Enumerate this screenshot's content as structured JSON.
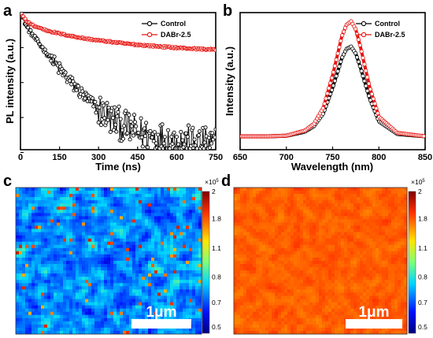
{
  "chart_data": [
    {
      "panel": "a",
      "type": "line",
      "xlabel": "Time (ns)",
      "ylabel": "PL intensity (a.u.)",
      "xlim": [
        0,
        750
      ],
      "x_ticks": [
        "0",
        "150",
        "300",
        "450",
        "600",
        "750"
      ],
      "y_scale": "log",
      "legend_position": "top-right",
      "series": [
        {
          "name": "Control",
          "color": "#000000",
          "x": [
            0,
            25,
            50,
            100,
            150,
            200,
            250,
            300,
            350,
            400,
            450,
            500,
            550,
            600,
            650,
            700,
            750
          ],
          "y": [
            1.0,
            0.38,
            0.21,
            0.07,
            0.024,
            0.009,
            0.0037,
            0.0017,
            0.0009,
            0.00055,
            0.00038,
            0.0003,
            0.00025,
            0.00022,
            0.0002,
            0.00018,
            0.00017
          ]
        },
        {
          "name": "DABr-2.5",
          "color": "#e8130f",
          "x": [
            0,
            25,
            50,
            100,
            150,
            200,
            250,
            300,
            350,
            400,
            450,
            500,
            550,
            600,
            650,
            700,
            750
          ],
          "y": [
            1.0,
            0.55,
            0.42,
            0.31,
            0.25,
            0.21,
            0.18,
            0.16,
            0.145,
            0.13,
            0.12,
            0.112,
            0.105,
            0.099,
            0.094,
            0.09,
            0.087
          ]
        }
      ]
    },
    {
      "panel": "b",
      "type": "line",
      "xlabel": "Wavelength (nm)",
      "ylabel": "Intensity (a.u.)",
      "xlim": [
        650,
        850
      ],
      "x_ticks": [
        "650",
        "700",
        "750",
        "800",
        "850"
      ],
      "legend_position": "top-right",
      "series": [
        {
          "name": "Control",
          "color": "#000000",
          "x": [
            650,
            680,
            700,
            720,
            730,
            740,
            750,
            755,
            760,
            765,
            770,
            775,
            780,
            790,
            800,
            820,
            850
          ],
          "y": [
            0.0,
            0.0,
            0.005,
            0.04,
            0.09,
            0.2,
            0.42,
            0.55,
            0.68,
            0.76,
            0.78,
            0.72,
            0.6,
            0.33,
            0.13,
            0.02,
            0.0
          ]
        },
        {
          "name": "DABr-2.5",
          "color": "#e8130f",
          "x": [
            650,
            680,
            700,
            720,
            730,
            740,
            750,
            755,
            760,
            765,
            770,
            775,
            780,
            790,
            800,
            820,
            850
          ],
          "y": [
            0.0,
            0.0,
            0.006,
            0.05,
            0.11,
            0.25,
            0.53,
            0.7,
            0.87,
            0.97,
            1.0,
            0.93,
            0.78,
            0.43,
            0.17,
            0.03,
            0.0
          ]
        }
      ]
    },
    {
      "panel": "c",
      "type": "heatmap",
      "colormap": "jet",
      "colorbar_exponent": "×10",
      "colorbar_exponent_power": "5",
      "colorbar_ticks": [
        "2",
        "1.8",
        "1.1",
        "0.8",
        "0.7",
        "0.5"
      ],
      "scale_bar": "1μm",
      "mean_level": 0.28
    },
    {
      "panel": "d",
      "type": "heatmap",
      "colormap": "jet",
      "colorbar_exponent": "×10",
      "colorbar_exponent_power": "5",
      "colorbar_ticks": [
        "2",
        "1.8",
        "1.1",
        "0.8",
        "0.7",
        "0.5"
      ],
      "scale_bar": "1μm",
      "mean_level": 0.8
    }
  ]
}
